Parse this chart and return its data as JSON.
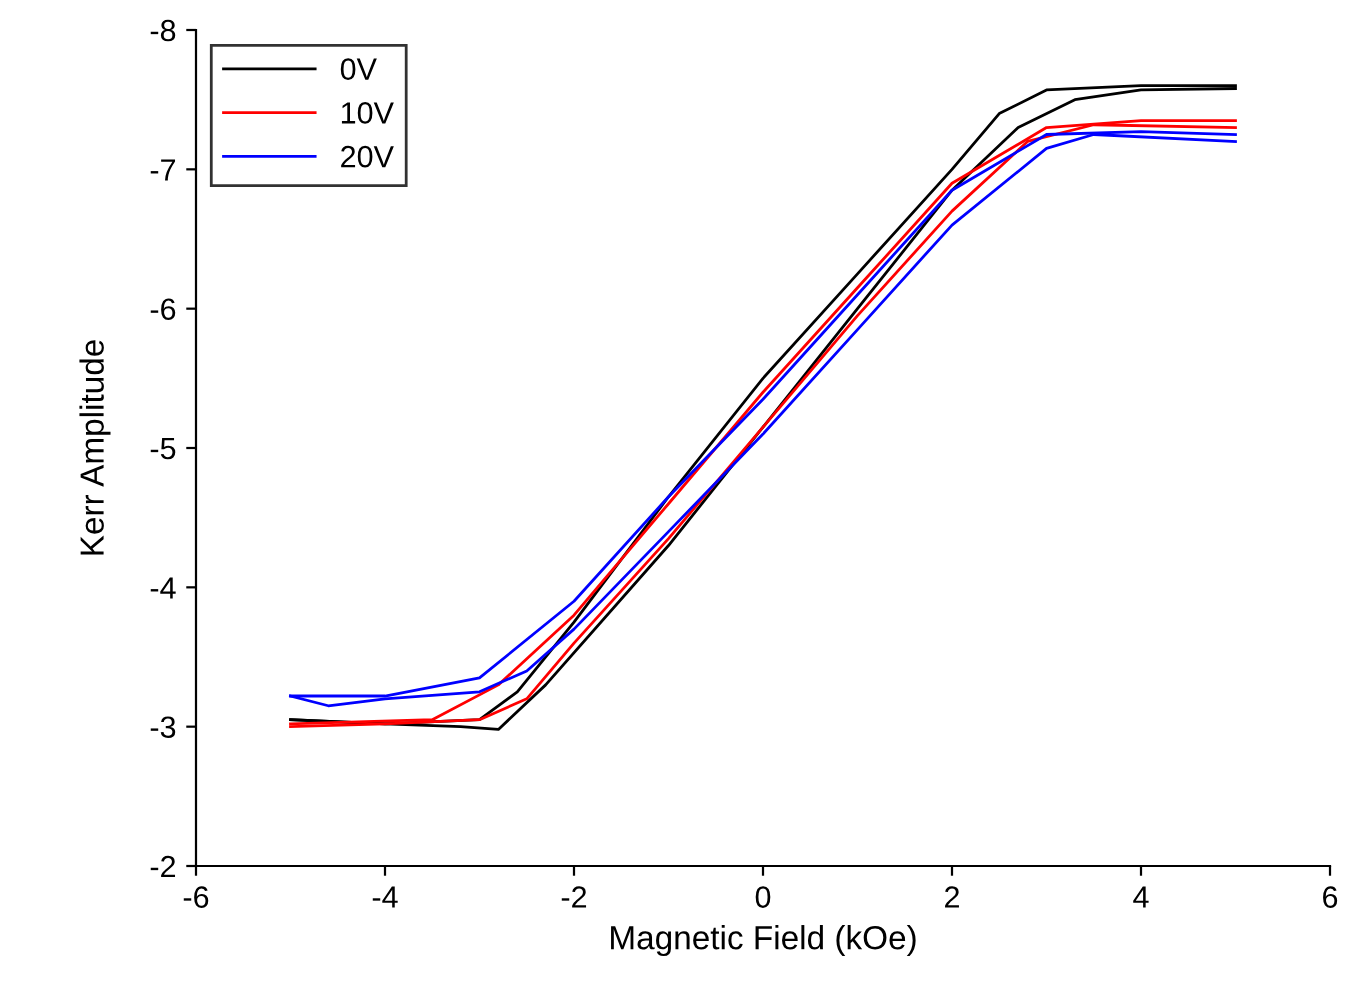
{
  "chart_data": {
    "type": "line",
    "xlabel": "Magnetic Field (kOe)",
    "ylabel": "Kerr Amplitude",
    "xlim": [
      -6,
      6
    ],
    "xticks": [
      -6,
      -4,
      -2,
      0,
      2,
      4,
      6
    ],
    "ylim": [
      -2,
      -8
    ],
    "yticks": [
      -8,
      -7,
      -6,
      -5,
      -4,
      -3,
      -2
    ],
    "grid": false,
    "legend": "top left",
    "marker": "none",
    "line_style": "solid",
    "series": [
      {
        "name": "0V",
        "color": "#000000",
        "x": [
          -5,
          -4,
          -3.2,
          -2.8,
          -2.3,
          -1,
          0,
          1,
          2,
          2.7,
          3.3,
          4,
          5
        ],
        "values": [
          -3.05,
          -3.02,
          -3.0,
          -2.98,
          -3.3,
          -4.3,
          -5.15,
          -6.0,
          -6.85,
          -7.3,
          -7.5,
          -7.57,
          -7.58
        ]
      },
      {
        "color": "#000000",
        "x": [
          -5,
          -4,
          -3,
          -2.6,
          -2,
          -1,
          0,
          1,
          2,
          2.5,
          3,
          4,
          5
        ],
        "values": [
          -3.05,
          -3.02,
          -3.05,
          -3.25,
          -3.75,
          -4.65,
          -5.5,
          -6.25,
          -7.0,
          -7.4,
          -7.57,
          -7.6,
          -7.6
        ]
      },
      {
        "name": "10V",
        "color": "#ff0000",
        "x": [
          -5,
          -4,
          -3,
          -2.5,
          -2,
          -1,
          0,
          1,
          2,
          2.8,
          3.5,
          5
        ],
        "values": [
          -3.0,
          -3.02,
          -3.05,
          -3.2,
          -3.6,
          -4.35,
          -5.15,
          -5.95,
          -6.7,
          -7.2,
          -7.32,
          -7.3
        ]
      },
      {
        "color": "#ff0000",
        "x": [
          -5,
          -3.5,
          -2.8,
          -2,
          -1,
          0,
          1,
          2,
          3,
          4,
          5
        ],
        "values": [
          -3.02,
          -3.05,
          -3.3,
          -3.8,
          -4.6,
          -5.4,
          -6.15,
          -6.9,
          -7.3,
          -7.35,
          -7.35
        ]
      },
      {
        "name": "20V",
        "color": "#0000ff",
        "x": [
          -5,
          -4.6,
          -4,
          -3,
          -2.5,
          -2,
          -1,
          0,
          1,
          2,
          3,
          3.5,
          5
        ],
        "values": [
          -3.22,
          -3.15,
          -3.2,
          -3.25,
          -3.4,
          -3.7,
          -4.4,
          -5.1,
          -5.85,
          -6.6,
          -7.15,
          -7.25,
          -7.2
        ]
      },
      {
        "color": "#0000ff",
        "x": [
          -5,
          -4,
          -3,
          -2,
          -1,
          0,
          1,
          2,
          3,
          4,
          5
        ],
        "values": [
          -3.22,
          -3.22,
          -3.35,
          -3.9,
          -4.65,
          -5.35,
          -6.1,
          -6.85,
          -7.25,
          -7.27,
          -7.25
        ]
      }
    ]
  }
}
